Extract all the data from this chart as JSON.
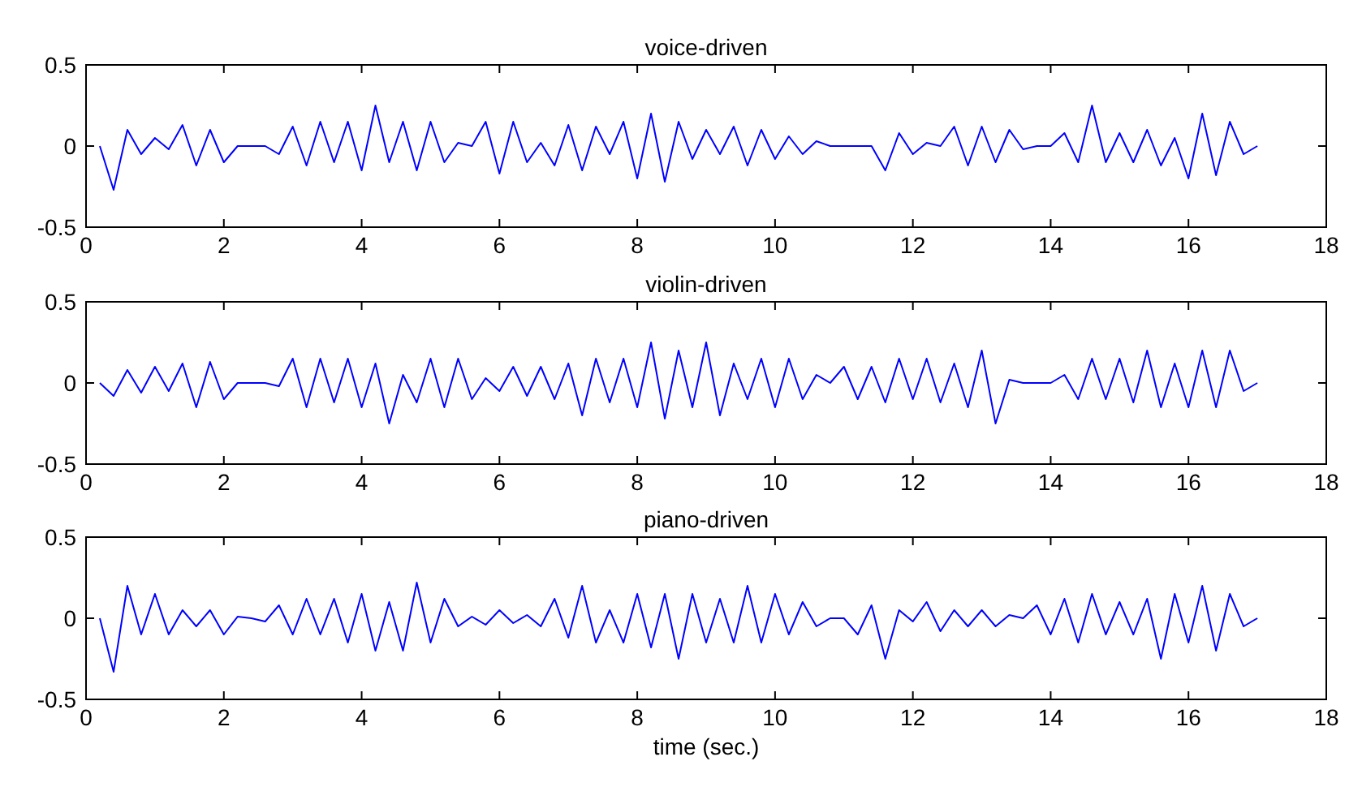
{
  "chart_data": [
    {
      "type": "line",
      "title": "voice-driven",
      "xlim": [
        0,
        18
      ],
      "xticks": [
        0,
        2,
        4,
        6,
        8,
        10,
        12,
        14,
        16,
        18
      ],
      "ylim": [
        -0.5,
        0.5
      ],
      "yticks": [
        -0.5,
        0,
        0.5
      ],
      "x": [
        0.2,
        0.4,
        0.6,
        0.8,
        1.0,
        1.2,
        1.4,
        1.6,
        1.8,
        2.0,
        2.2,
        2.4,
        2.6,
        2.8,
        3.0,
        3.2,
        3.4,
        3.6,
        3.8,
        4.0,
        4.2,
        4.4,
        4.6,
        4.8,
        5.0,
        5.2,
        5.4,
        5.6,
        5.8,
        6.0,
        6.2,
        6.4,
        6.6,
        6.8,
        7.0,
        7.2,
        7.4,
        7.6,
        7.8,
        8.0,
        8.2,
        8.4,
        8.6,
        8.8,
        9.0,
        9.2,
        9.4,
        9.6,
        9.8,
        10.0,
        10.2,
        10.4,
        10.6,
        10.8,
        11.0,
        11.2,
        11.4,
        11.6,
        11.8,
        12.0,
        12.2,
        12.4,
        12.6,
        12.8,
        13.0,
        13.2,
        13.4,
        13.6,
        13.8,
        14.0,
        14.2,
        14.4,
        14.6,
        14.8,
        15.0,
        15.2,
        15.4,
        15.6,
        15.8,
        16.0,
        16.2,
        16.4,
        16.6,
        16.8,
        17.0
      ],
      "series": [
        {
          "color": "#0000ff",
          "values": [
            0,
            -0.27,
            0.1,
            -0.05,
            0.05,
            -0.02,
            0.13,
            -0.12,
            0.1,
            -0.1,
            0,
            0,
            0,
            -0.05,
            0.12,
            -0.12,
            0.15,
            -0.1,
            0.15,
            -0.15,
            0.25,
            -0.1,
            0.15,
            -0.15,
            0.15,
            -0.1,
            0.02,
            0,
            0.15,
            -0.17,
            0.15,
            -0.1,
            0.02,
            -0.12,
            0.13,
            -0.15,
            0.12,
            -0.05,
            0.15,
            -0.2,
            0.2,
            -0.22,
            0.15,
            -0.08,
            0.1,
            -0.05,
            0.12,
            -0.12,
            0.1,
            -0.08,
            0.06,
            -0.05,
            0.03,
            0,
            0,
            0,
            0,
            -0.15,
            0.08,
            -0.05,
            0.02,
            0,
            0.12,
            -0.12,
            0.12,
            -0.1,
            0.1,
            -0.02,
            0,
            0,
            0.08,
            -0.1,
            0.25,
            -0.1,
            0.08,
            -0.1,
            0.1,
            -0.12,
            0.05,
            -0.2,
            0.2,
            -0.18,
            0.15,
            -0.05,
            0
          ]
        }
      ]
    },
    {
      "type": "line",
      "title": "violin-driven",
      "xlim": [
        0,
        18
      ],
      "xticks": [
        0,
        2,
        4,
        6,
        8,
        10,
        12,
        14,
        16,
        18
      ],
      "ylim": [
        -0.5,
        0.5
      ],
      "yticks": [
        -0.5,
        0,
        0.5
      ],
      "x": [
        0.2,
        0.4,
        0.6,
        0.8,
        1.0,
        1.2,
        1.4,
        1.6,
        1.8,
        2.0,
        2.2,
        2.4,
        2.6,
        2.8,
        3.0,
        3.2,
        3.4,
        3.6,
        3.8,
        4.0,
        4.2,
        4.4,
        4.6,
        4.8,
        5.0,
        5.2,
        5.4,
        5.6,
        5.8,
        6.0,
        6.2,
        6.4,
        6.6,
        6.8,
        7.0,
        7.2,
        7.4,
        7.6,
        7.8,
        8.0,
        8.2,
        8.4,
        8.6,
        8.8,
        9.0,
        9.2,
        9.4,
        9.6,
        9.8,
        10.0,
        10.2,
        10.4,
        10.6,
        10.8,
        11.0,
        11.2,
        11.4,
        11.6,
        11.8,
        12.0,
        12.2,
        12.4,
        12.6,
        12.8,
        13.0,
        13.2,
        13.4,
        13.6,
        13.8,
        14.0,
        14.2,
        14.4,
        14.6,
        14.8,
        15.0,
        15.2,
        15.4,
        15.6,
        15.8,
        16.0,
        16.2,
        16.4,
        16.6,
        16.8,
        17.0
      ],
      "series": [
        {
          "color": "#0000ff",
          "values": [
            0,
            -0.08,
            0.08,
            -0.06,
            0.1,
            -0.05,
            0.12,
            -0.15,
            0.13,
            -0.1,
            0,
            0,
            0,
            -0.02,
            0.15,
            -0.15,
            0.15,
            -0.12,
            0.15,
            -0.15,
            0.12,
            -0.25,
            0.05,
            -0.12,
            0.15,
            -0.15,
            0.15,
            -0.1,
            0.03,
            -0.05,
            0.1,
            -0.08,
            0.1,
            -0.1,
            0.12,
            -0.2,
            0.15,
            -0.12,
            0.15,
            -0.15,
            0.25,
            -0.22,
            0.2,
            -0.15,
            0.25,
            -0.2,
            0.12,
            -0.1,
            0.15,
            -0.15,
            0.15,
            -0.1,
            0.05,
            0,
            0.1,
            -0.1,
            0.1,
            -0.12,
            0.15,
            -0.1,
            0.15,
            -0.12,
            0.12,
            -0.15,
            0.2,
            -0.25,
            0.02,
            0,
            0,
            0,
            0.05,
            -0.1,
            0.15,
            -0.1,
            0.15,
            -0.12,
            0.2,
            -0.15,
            0.12,
            -0.15,
            0.2,
            -0.15,
            0.2,
            -0.05,
            0
          ]
        }
      ]
    },
    {
      "type": "line",
      "title": "piano-driven",
      "xlabel": "time (sec.)",
      "xlim": [
        0,
        18
      ],
      "xticks": [
        0,
        2,
        4,
        6,
        8,
        10,
        12,
        14,
        16,
        18
      ],
      "ylim": [
        -0.5,
        0.5
      ],
      "yticks": [
        -0.5,
        0,
        0.5
      ],
      "x": [
        0.2,
        0.4,
        0.6,
        0.8,
        1.0,
        1.2,
        1.4,
        1.6,
        1.8,
        2.0,
        2.2,
        2.4,
        2.6,
        2.8,
        3.0,
        3.2,
        3.4,
        3.6,
        3.8,
        4.0,
        4.2,
        4.4,
        4.6,
        4.8,
        5.0,
        5.2,
        5.4,
        5.6,
        5.8,
        6.0,
        6.2,
        6.4,
        6.6,
        6.8,
        7.0,
        7.2,
        7.4,
        7.6,
        7.8,
        8.0,
        8.2,
        8.4,
        8.6,
        8.8,
        9.0,
        9.2,
        9.4,
        9.6,
        9.8,
        10.0,
        10.2,
        10.4,
        10.6,
        10.8,
        11.0,
        11.2,
        11.4,
        11.6,
        11.8,
        12.0,
        12.2,
        12.4,
        12.6,
        12.8,
        13.0,
        13.2,
        13.4,
        13.6,
        13.8,
        14.0,
        14.2,
        14.4,
        14.6,
        14.8,
        15.0,
        15.2,
        15.4,
        15.6,
        15.8,
        16.0,
        16.2,
        16.4,
        16.6,
        16.8,
        17.0
      ],
      "series": [
        {
          "color": "#0000ff",
          "values": [
            0,
            -0.33,
            0.2,
            -0.1,
            0.15,
            -0.1,
            0.05,
            -0.05,
            0.05,
            -0.1,
            0.01,
            0,
            -0.02,
            0.08,
            -0.1,
            0.12,
            -0.1,
            0.12,
            -0.15,
            0.15,
            -0.2,
            0.1,
            -0.2,
            0.22,
            -0.15,
            0.12,
            -0.05,
            0.01,
            -0.04,
            0.05,
            -0.03,
            0.02,
            -0.05,
            0.12,
            -0.12,
            0.2,
            -0.15,
            0.05,
            -0.15,
            0.15,
            -0.18,
            0.15,
            -0.25,
            0.15,
            -0.15,
            0.12,
            -0.15,
            0.2,
            -0.15,
            0.15,
            -0.1,
            0.1,
            -0.05,
            0,
            0,
            -0.1,
            0.08,
            -0.25,
            0.05,
            -0.02,
            0.1,
            -0.08,
            0.05,
            -0.05,
            0.05,
            -0.05,
            0.02,
            0,
            0.08,
            -0.1,
            0.12,
            -0.15,
            0.15,
            -0.1,
            0.1,
            -0.1,
            0.12,
            -0.25,
            0.15,
            -0.15,
            0.2,
            -0.2,
            0.15,
            -0.05,
            0
          ]
        }
      ]
    }
  ]
}
